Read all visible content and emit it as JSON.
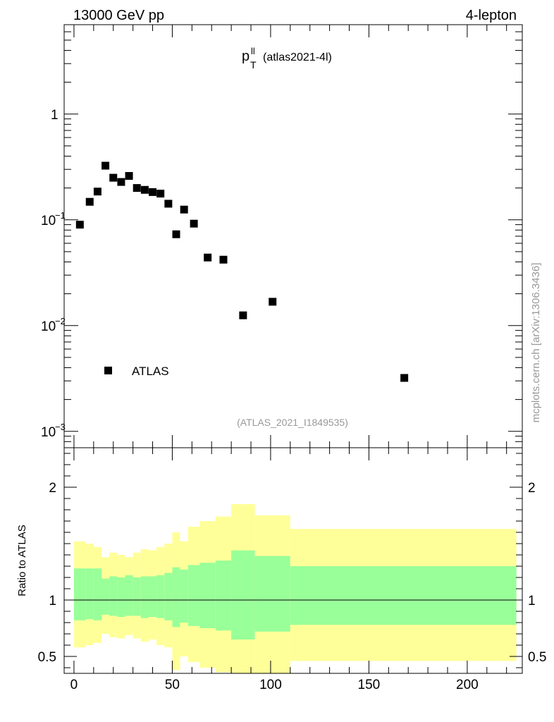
{
  "header": {
    "left": "13000 GeV pp",
    "right": "4-lepton"
  },
  "chart_data": [
    {
      "type": "scatter",
      "panel": "main",
      "title_main": "p",
      "title_sup": "ll",
      "title_sub": "T",
      "title_suffix": "(atlas2021-4l)",
      "yscale": "log",
      "ylim": [
        0.0007,
        7
      ],
      "xlim": [
        -5,
        228
      ],
      "ytick_labels": [
        {
          "value": 0.001,
          "base": "10",
          "exp": "−3"
        },
        {
          "value": 0.01,
          "base": "10",
          "exp": "−2"
        },
        {
          "value": 0.1,
          "base": "10",
          "exp": "−1"
        },
        {
          "value": 1,
          "base": "1",
          "exp": ""
        }
      ],
      "series": [
        {
          "name": "ATLAS",
          "color": "#000000",
          "points": [
            {
              "x": 3,
              "y": 0.09
            },
            {
              "x": 8,
              "y": 0.148
            },
            {
              "x": 12,
              "y": 0.185
            },
            {
              "x": 16,
              "y": 0.325
            },
            {
              "x": 20,
              "y": 0.25
            },
            {
              "x": 24,
              "y": 0.228
            },
            {
              "x": 28,
              "y": 0.26
            },
            {
              "x": 32,
              "y": 0.2
            },
            {
              "x": 36,
              "y": 0.192
            },
            {
              "x": 40,
              "y": 0.183
            },
            {
              "x": 44,
              "y": 0.177
            },
            {
              "x": 48,
              "y": 0.142
            },
            {
              "x": 52,
              "y": 0.073
            },
            {
              "x": 56,
              "y": 0.125
            },
            {
              "x": 61,
              "y": 0.092
            },
            {
              "x": 68,
              "y": 0.044
            },
            {
              "x": 76,
              "y": 0.042
            },
            {
              "x": 86,
              "y": 0.0125
            },
            {
              "x": 101,
              "y": 0.0168
            },
            {
              "x": 168,
              "y": 0.0032
            }
          ]
        }
      ],
      "legend": {
        "label": "ATLAS",
        "placement": "lower-left"
      },
      "analysis_label": "(ATLAS_2021_I1849535)",
      "side_label": "mcplots.cern.ch [arXiv:1306.3436]"
    },
    {
      "type": "area",
      "panel": "ratio",
      "ylabel": "Ratio to ATLAS",
      "ylim": [
        0.35,
        2.35
      ],
      "xlim": [
        -5,
        228
      ],
      "xticks": [
        0,
        50,
        100,
        150,
        200
      ],
      "xtick_labels": [
        "0",
        "50",
        "100",
        "150",
        "200"
      ],
      "yticks": [
        0.5,
        1,
        2
      ],
      "ytick_labels": [
        "0.5",
        "1",
        "2"
      ],
      "reference_line": 1,
      "bands": {
        "edges": [
          0,
          6,
          10,
          14,
          18,
          22,
          26,
          30,
          34,
          38,
          42,
          46,
          50,
          54,
          58,
          64,
          72,
          80,
          92,
          110,
          225
        ],
        "outer_color": "#ffff99",
        "inner_color": "#99ff99",
        "outer_upper": [
          1.52,
          1.5,
          1.47,
          1.38,
          1.42,
          1.4,
          1.38,
          1.42,
          1.45,
          1.44,
          1.47,
          1.5,
          1.6,
          1.52,
          1.65,
          1.7,
          1.74,
          1.85,
          1.75,
          1.63
        ],
        "outer_lower": [
          0.58,
          0.6,
          0.62,
          0.7,
          0.67,
          0.66,
          0.69,
          0.66,
          0.63,
          0.65,
          0.6,
          0.58,
          0.38,
          0.5,
          0.45,
          0.4,
          0.36,
          0.3,
          0.3,
          0.46
        ],
        "inner_upper": [
          1.28,
          1.28,
          1.28,
          1.19,
          1.21,
          1.2,
          1.22,
          1.2,
          1.21,
          1.21,
          1.22,
          1.24,
          1.29,
          1.27,
          1.31,
          1.33,
          1.35,
          1.44,
          1.39,
          1.3
        ],
        "inner_lower": [
          0.82,
          0.83,
          0.82,
          0.87,
          0.86,
          0.85,
          0.86,
          0.86,
          0.84,
          0.85,
          0.84,
          0.82,
          0.76,
          0.8,
          0.77,
          0.75,
          0.73,
          0.65,
          0.72,
          0.78
        ]
      }
    }
  ]
}
